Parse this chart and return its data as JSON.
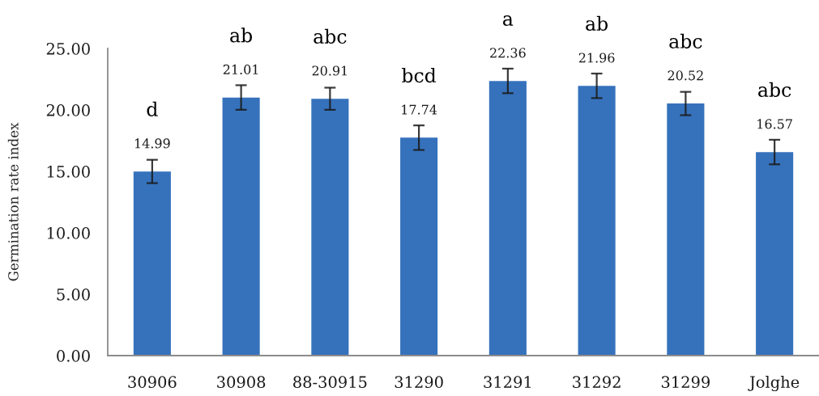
{
  "chart_data": {
    "type": "bar",
    "ylabel": "Germination rate index",
    "categories": [
      "30906",
      "30908",
      "88-30915",
      "31290",
      "31291",
      "31292",
      "31299",
      "Jolghe"
    ],
    "values": [
      14.99,
      21.01,
      20.91,
      17.74,
      22.36,
      21.96,
      20.52,
      16.57
    ],
    "errors": [
      0.95,
      1.0,
      0.9,
      1.0,
      1.0,
      1.0,
      0.95,
      1.0
    ],
    "color": "#3672bc",
    "ylim": [
      0,
      25
    ],
    "yticks": [
      {
        "value": 0,
        "label": "0.00"
      },
      {
        "value": 5,
        "label": "5.00"
      },
      {
        "value": 10,
        "label": "10.00"
      },
      {
        "value": 15,
        "label": "15.00"
      },
      {
        "value": 20,
        "label": "20.00"
      },
      {
        "value": 25,
        "label": "25.00"
      }
    ],
    "data_labels": true,
    "annotations": [
      "d",
      "ab",
      "abc",
      "bcd",
      "a",
      "ab",
      "abc",
      "abc"
    ]
  }
}
